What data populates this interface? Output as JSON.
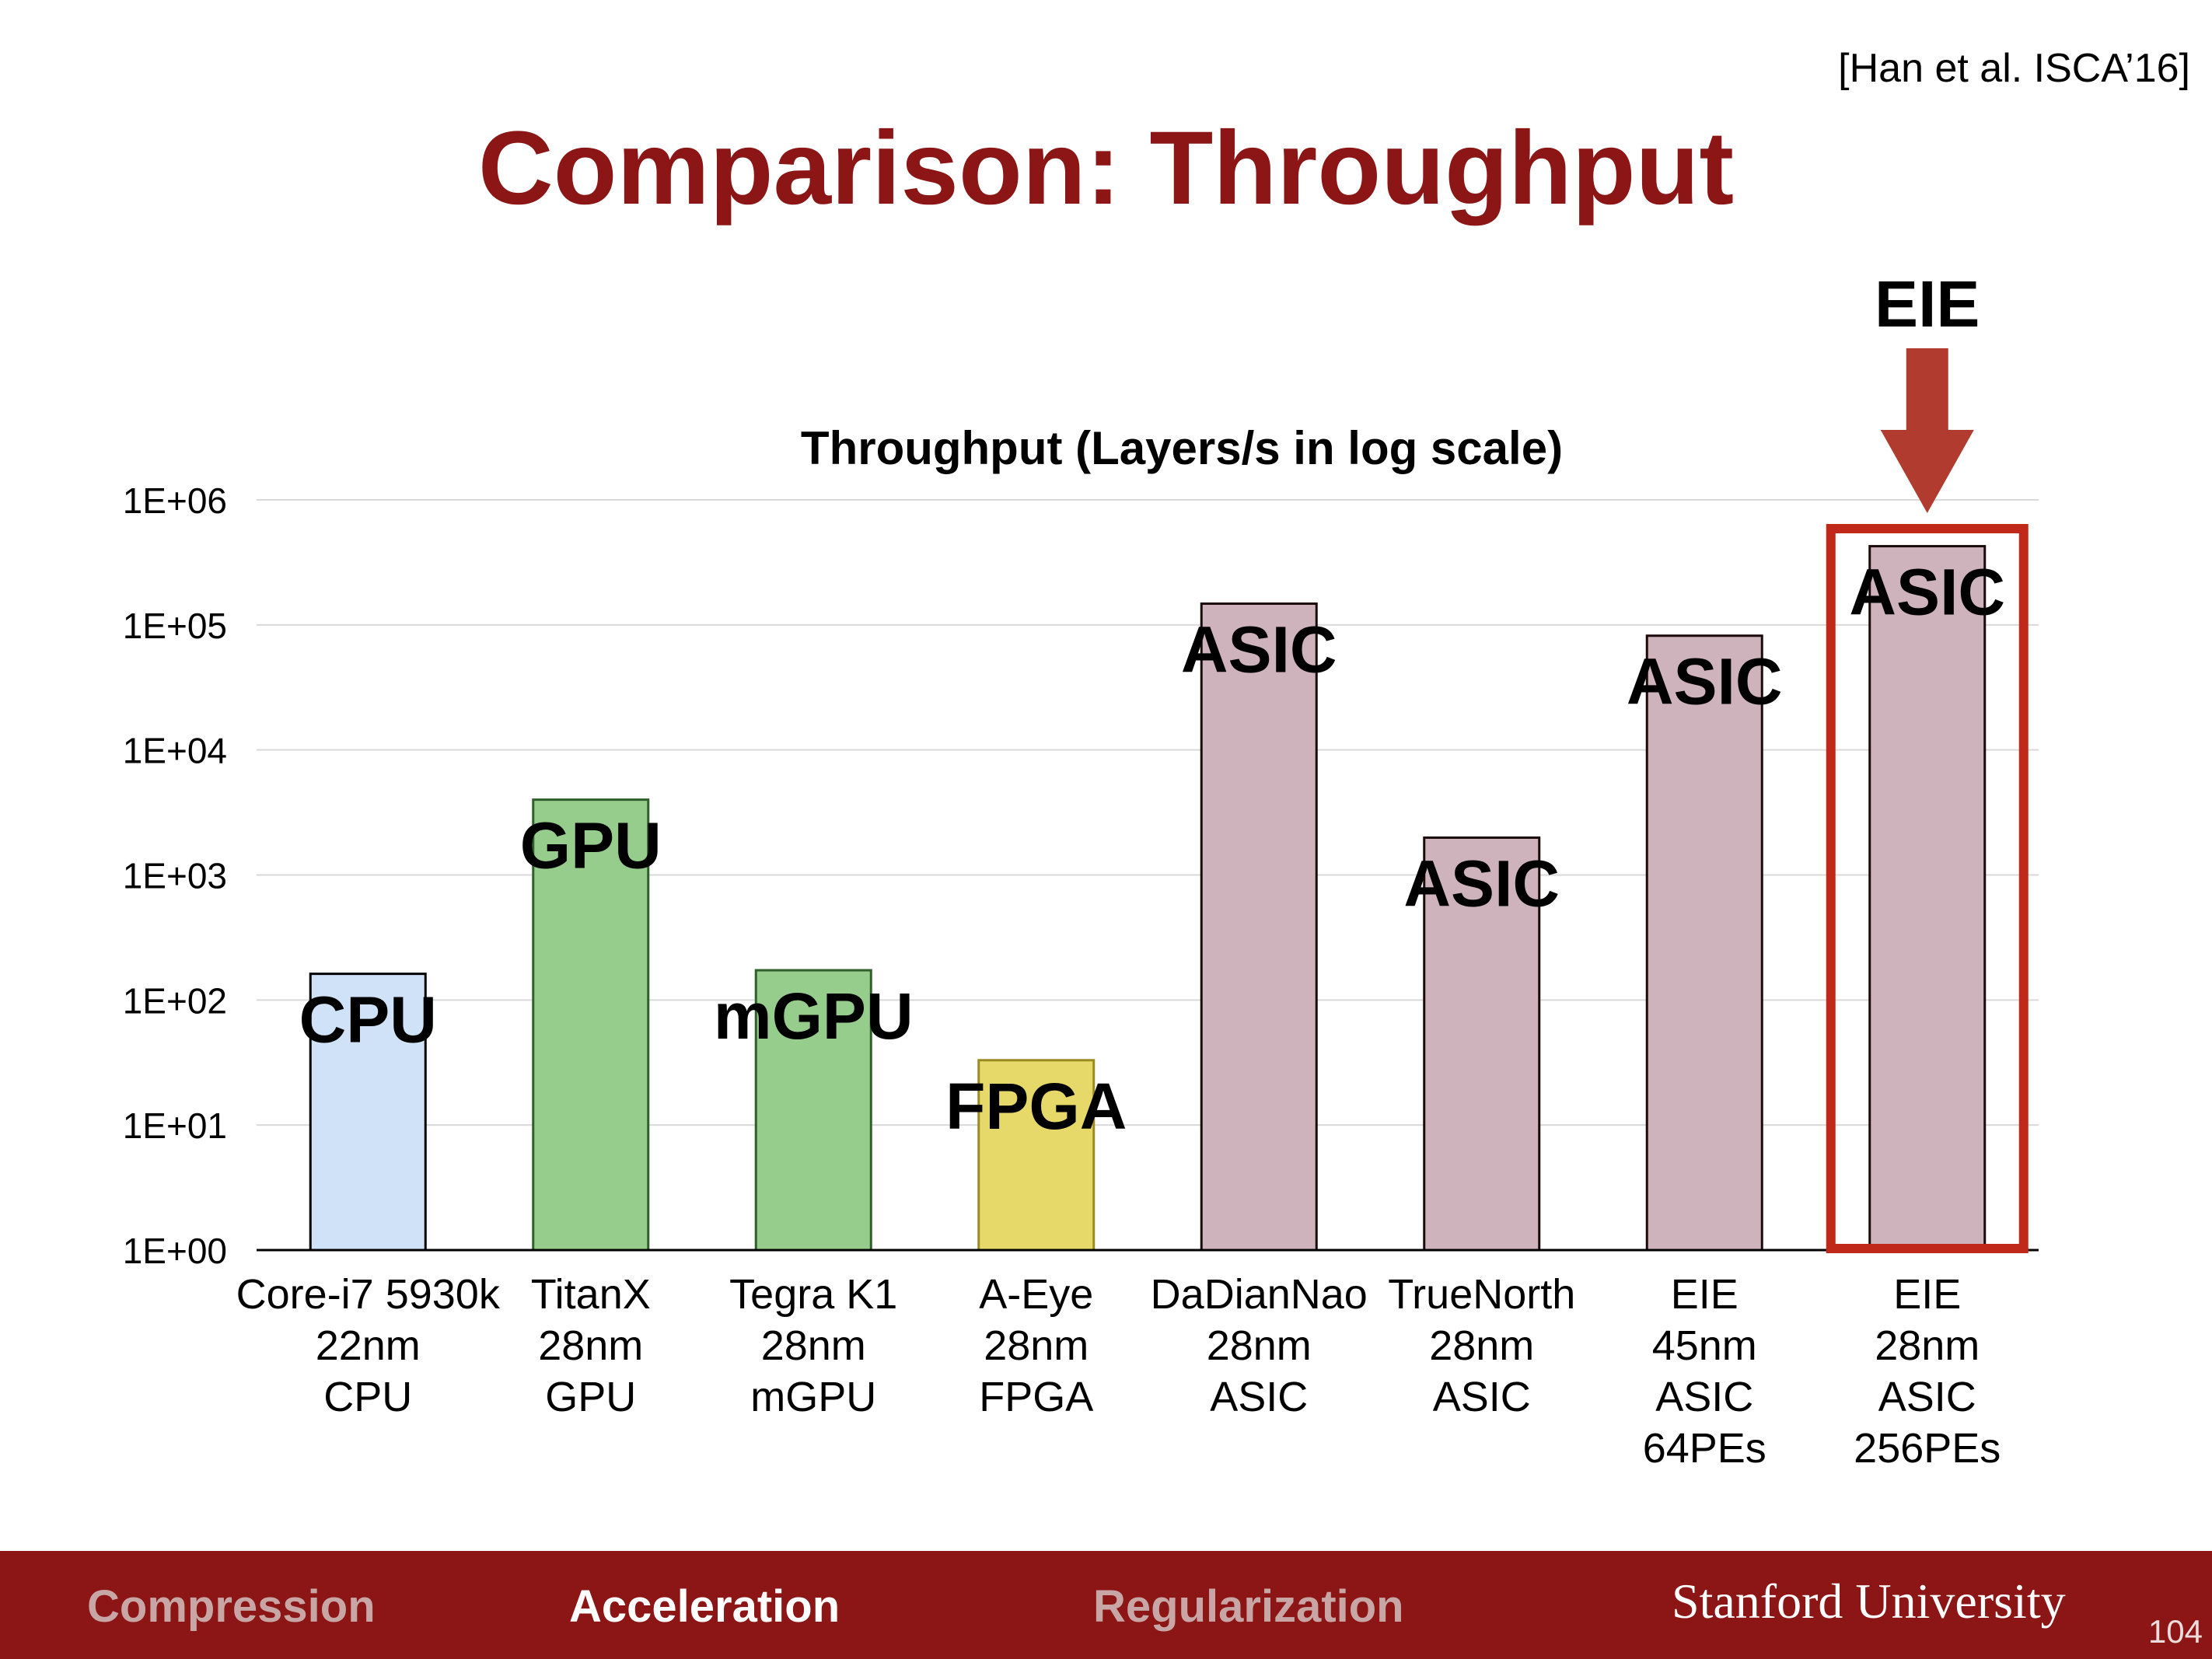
{
  "slide": {
    "citation": "[Han et al. ISCA’16]",
    "title": "Comparison: Throughput",
    "callout_label": "EIE",
    "page_number": "104"
  },
  "footer": {
    "items": [
      {
        "label": "Compression",
        "state": "inactive"
      },
      {
        "label": "Acceleration",
        "state": "active"
      },
      {
        "label": "Regularization",
        "state": "inactive"
      }
    ],
    "brand": "Stanford University"
  },
  "colors": {
    "title": "#8c1515",
    "footer_bg": "#8c1515",
    "cpu_bar": "#cfe2f7",
    "gpu_bar": "#97cd8c",
    "fpga_bar": "#e6d96a",
    "asic_bar": "#ceb3bc",
    "highlight_box": "#c0281a",
    "arrow": "#b23b2f"
  },
  "chart_data": {
    "type": "bar",
    "title": "Throughput (Layers/s in log scale)",
    "y_scale": "log",
    "ylim": [
      1,
      1000000
    ],
    "y_ticks": [
      "1E+00",
      "1E+01",
      "1E+02",
      "1E+03",
      "1E+04",
      "1E+05",
      "1E+06"
    ],
    "grid": true,
    "categories": [
      [
        "Core-i7 5930k",
        "22nm",
        "CPU"
      ],
      [
        "TitanX",
        "28nm",
        "GPU"
      ],
      [
        "Tegra K1",
        "28nm",
        "mGPU"
      ],
      [
        "A-Eye",
        "28nm",
        "FPGA"
      ],
      [
        "DaDianNao",
        "28nm",
        "ASIC"
      ],
      [
        "TrueNorth",
        "28nm",
        "ASIC"
      ],
      [
        "EIE",
        "45nm",
        "ASIC",
        "64PEs"
      ],
      [
        "EIE",
        "28nm",
        "ASIC",
        "256PEs"
      ]
    ],
    "values": [
      162,
      4003,
      173,
      33,
      147938,
      1989,
      81967,
      426230
    ],
    "bar_labels": [
      "CPU",
      "GPU",
      "mGPU",
      "FPGA",
      "ASIC",
      "ASIC",
      "ASIC",
      "ASIC"
    ],
    "bar_kinds": [
      "cpu",
      "gpu",
      "gpu",
      "fpga",
      "asic",
      "asic",
      "asic",
      "asic"
    ],
    "highlighted_index": 7
  }
}
